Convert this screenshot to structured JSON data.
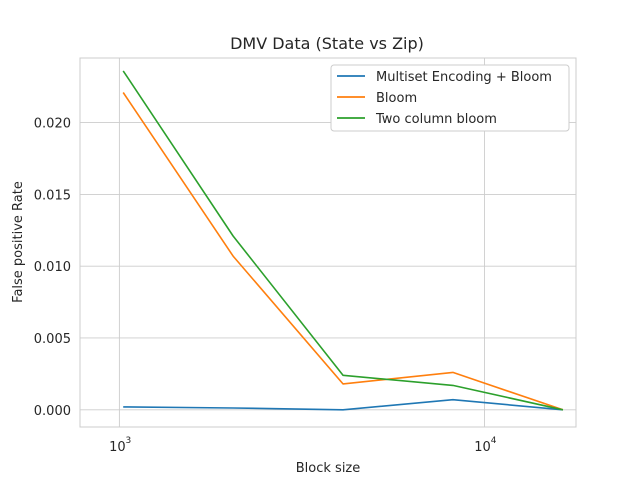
{
  "chart_data": {
    "type": "line",
    "title": "DMV Data (State vs Zip)",
    "xlabel": "Block size",
    "ylabel": "False positive Rate",
    "xscale": "log",
    "xlim": [
      780,
      17800
    ],
    "ylim": [
      -0.0012,
      0.0245
    ],
    "x": [
      1024,
      2048,
      4096,
      8192,
      16384
    ],
    "series": [
      {
        "name": "Multiset Encoding + Bloom",
        "color": "#1f77b4",
        "values": [
          0.0002,
          0.00012,
          0.0,
          0.0007,
          0.0
        ]
      },
      {
        "name": "Bloom",
        "color": "#ff7f0e",
        "values": [
          0.0221,
          0.0107,
          0.0018,
          0.0026,
          0.0
        ]
      },
      {
        "name": "Two column bloom",
        "color": "#2ca02c",
        "values": [
          0.0236,
          0.0121,
          0.0024,
          0.0017,
          0.0
        ]
      }
    ],
    "yticks": [
      0.0,
      0.005,
      0.01,
      0.015,
      0.02
    ],
    "ytick_labels": [
      "0.000",
      "0.005",
      "0.010",
      "0.015",
      "0.020"
    ],
    "xticks": [
      1000,
      10000
    ],
    "xtick_labels": [
      "10",
      "10"
    ],
    "xtick_exponents": [
      "3",
      "4"
    ],
    "grid": true,
    "legend_position": "top-right"
  }
}
